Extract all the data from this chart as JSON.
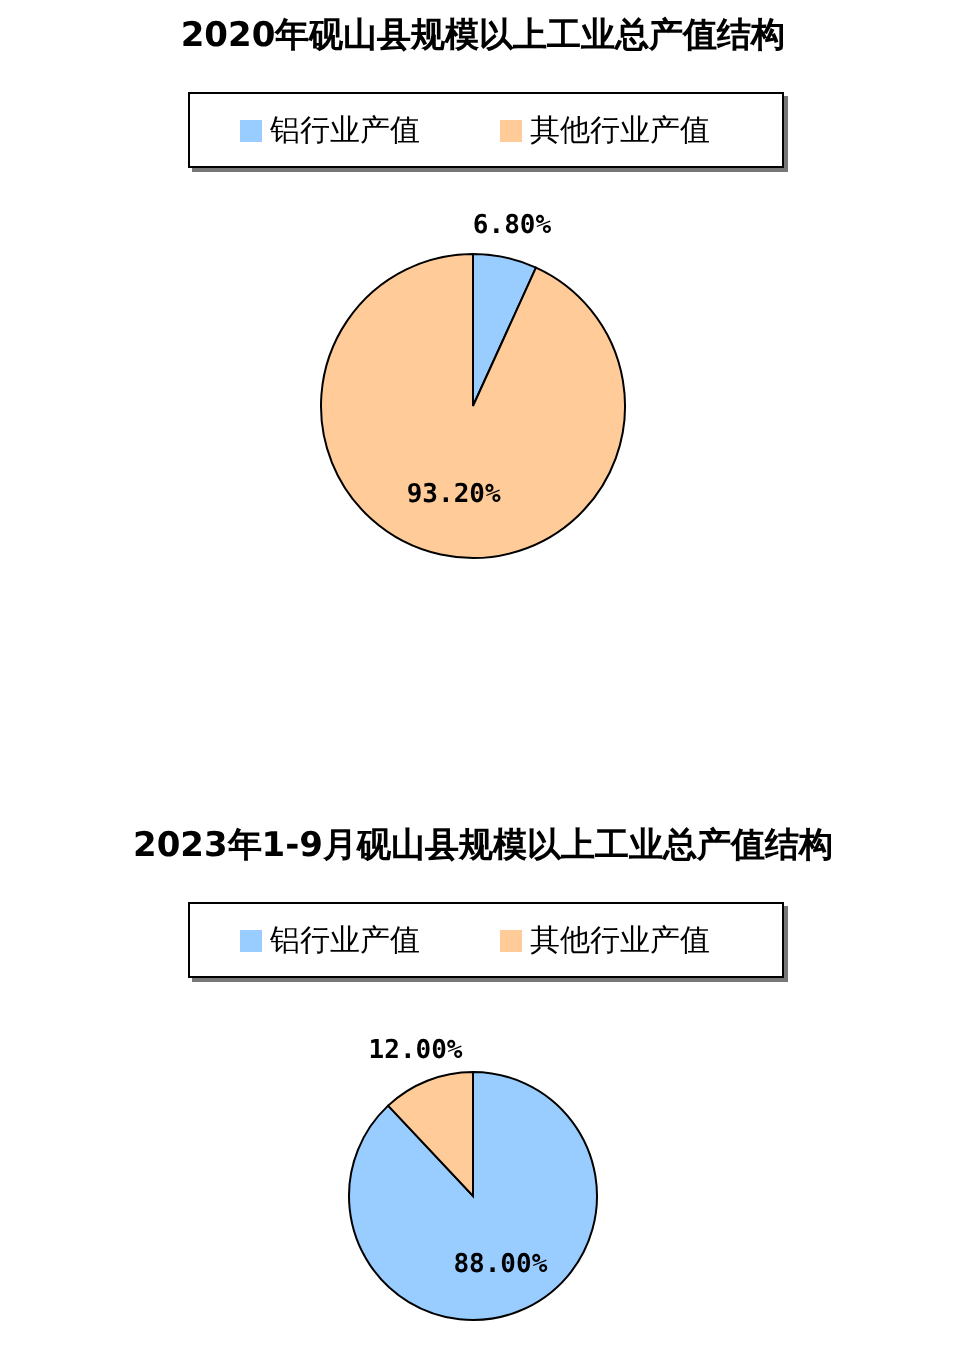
{
  "chart_data": [
    {
      "type": "pie",
      "title": "2020年砚山县规模以上工业总产值结构",
      "categories": [
        "铝行业产值",
        "其他行业产值"
      ],
      "values": [
        6.8,
        93.2
      ],
      "colors": [
        "#99ccff",
        "#ffcc99"
      ],
      "value_labels": [
        "6.80%",
        "93.20%"
      ],
      "legend": "top"
    },
    {
      "type": "pie",
      "title": "2023年1-9月砚山县规模以上工业总产值结构",
      "categories": [
        "铝行业产值",
        "其他行业产值"
      ],
      "values": [
        88,
        12
      ],
      "colors": [
        "#99ccff",
        "#ffcc99"
      ],
      "value_labels": [
        "88.00%",
        "12.00%"
      ],
      "legend": "top"
    }
  ]
}
